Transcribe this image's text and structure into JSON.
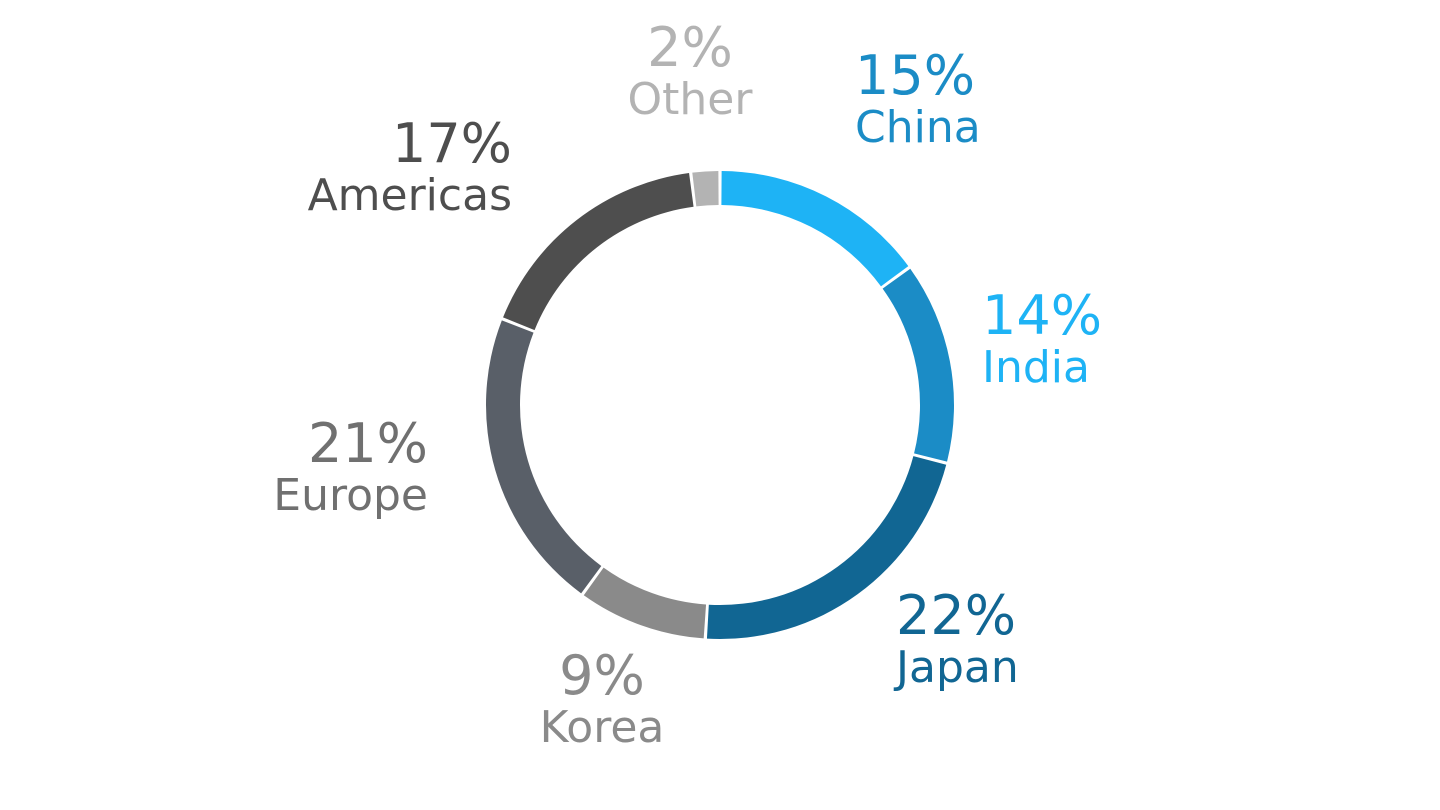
{
  "chart_data": {
    "type": "pie",
    "donut": true,
    "categories": [
      "China",
      "India",
      "Japan",
      "Korea",
      "Europe",
      "Americas",
      "Other"
    ],
    "values": [
      15,
      14,
      22,
      9,
      21,
      17,
      2
    ],
    "labels": [
      "15%",
      "14%",
      "22%",
      "9%",
      "21%",
      "17%",
      "2%"
    ],
    "colors": [
      "#1EB3F5",
      "#1B8CC6",
      "#116693",
      "#8A8A8A",
      "#595F68",
      "#4E4E4E",
      "#B3B3B3"
    ],
    "label_colors": [
      "#1B8CC6",
      "#1EB3F5",
      "#116693",
      "#8A8A8A",
      "#707070",
      "#4E4E4E",
      "#B3B3B3"
    ],
    "start": "top",
    "direction": "clockwise",
    "legend": "none"
  }
}
